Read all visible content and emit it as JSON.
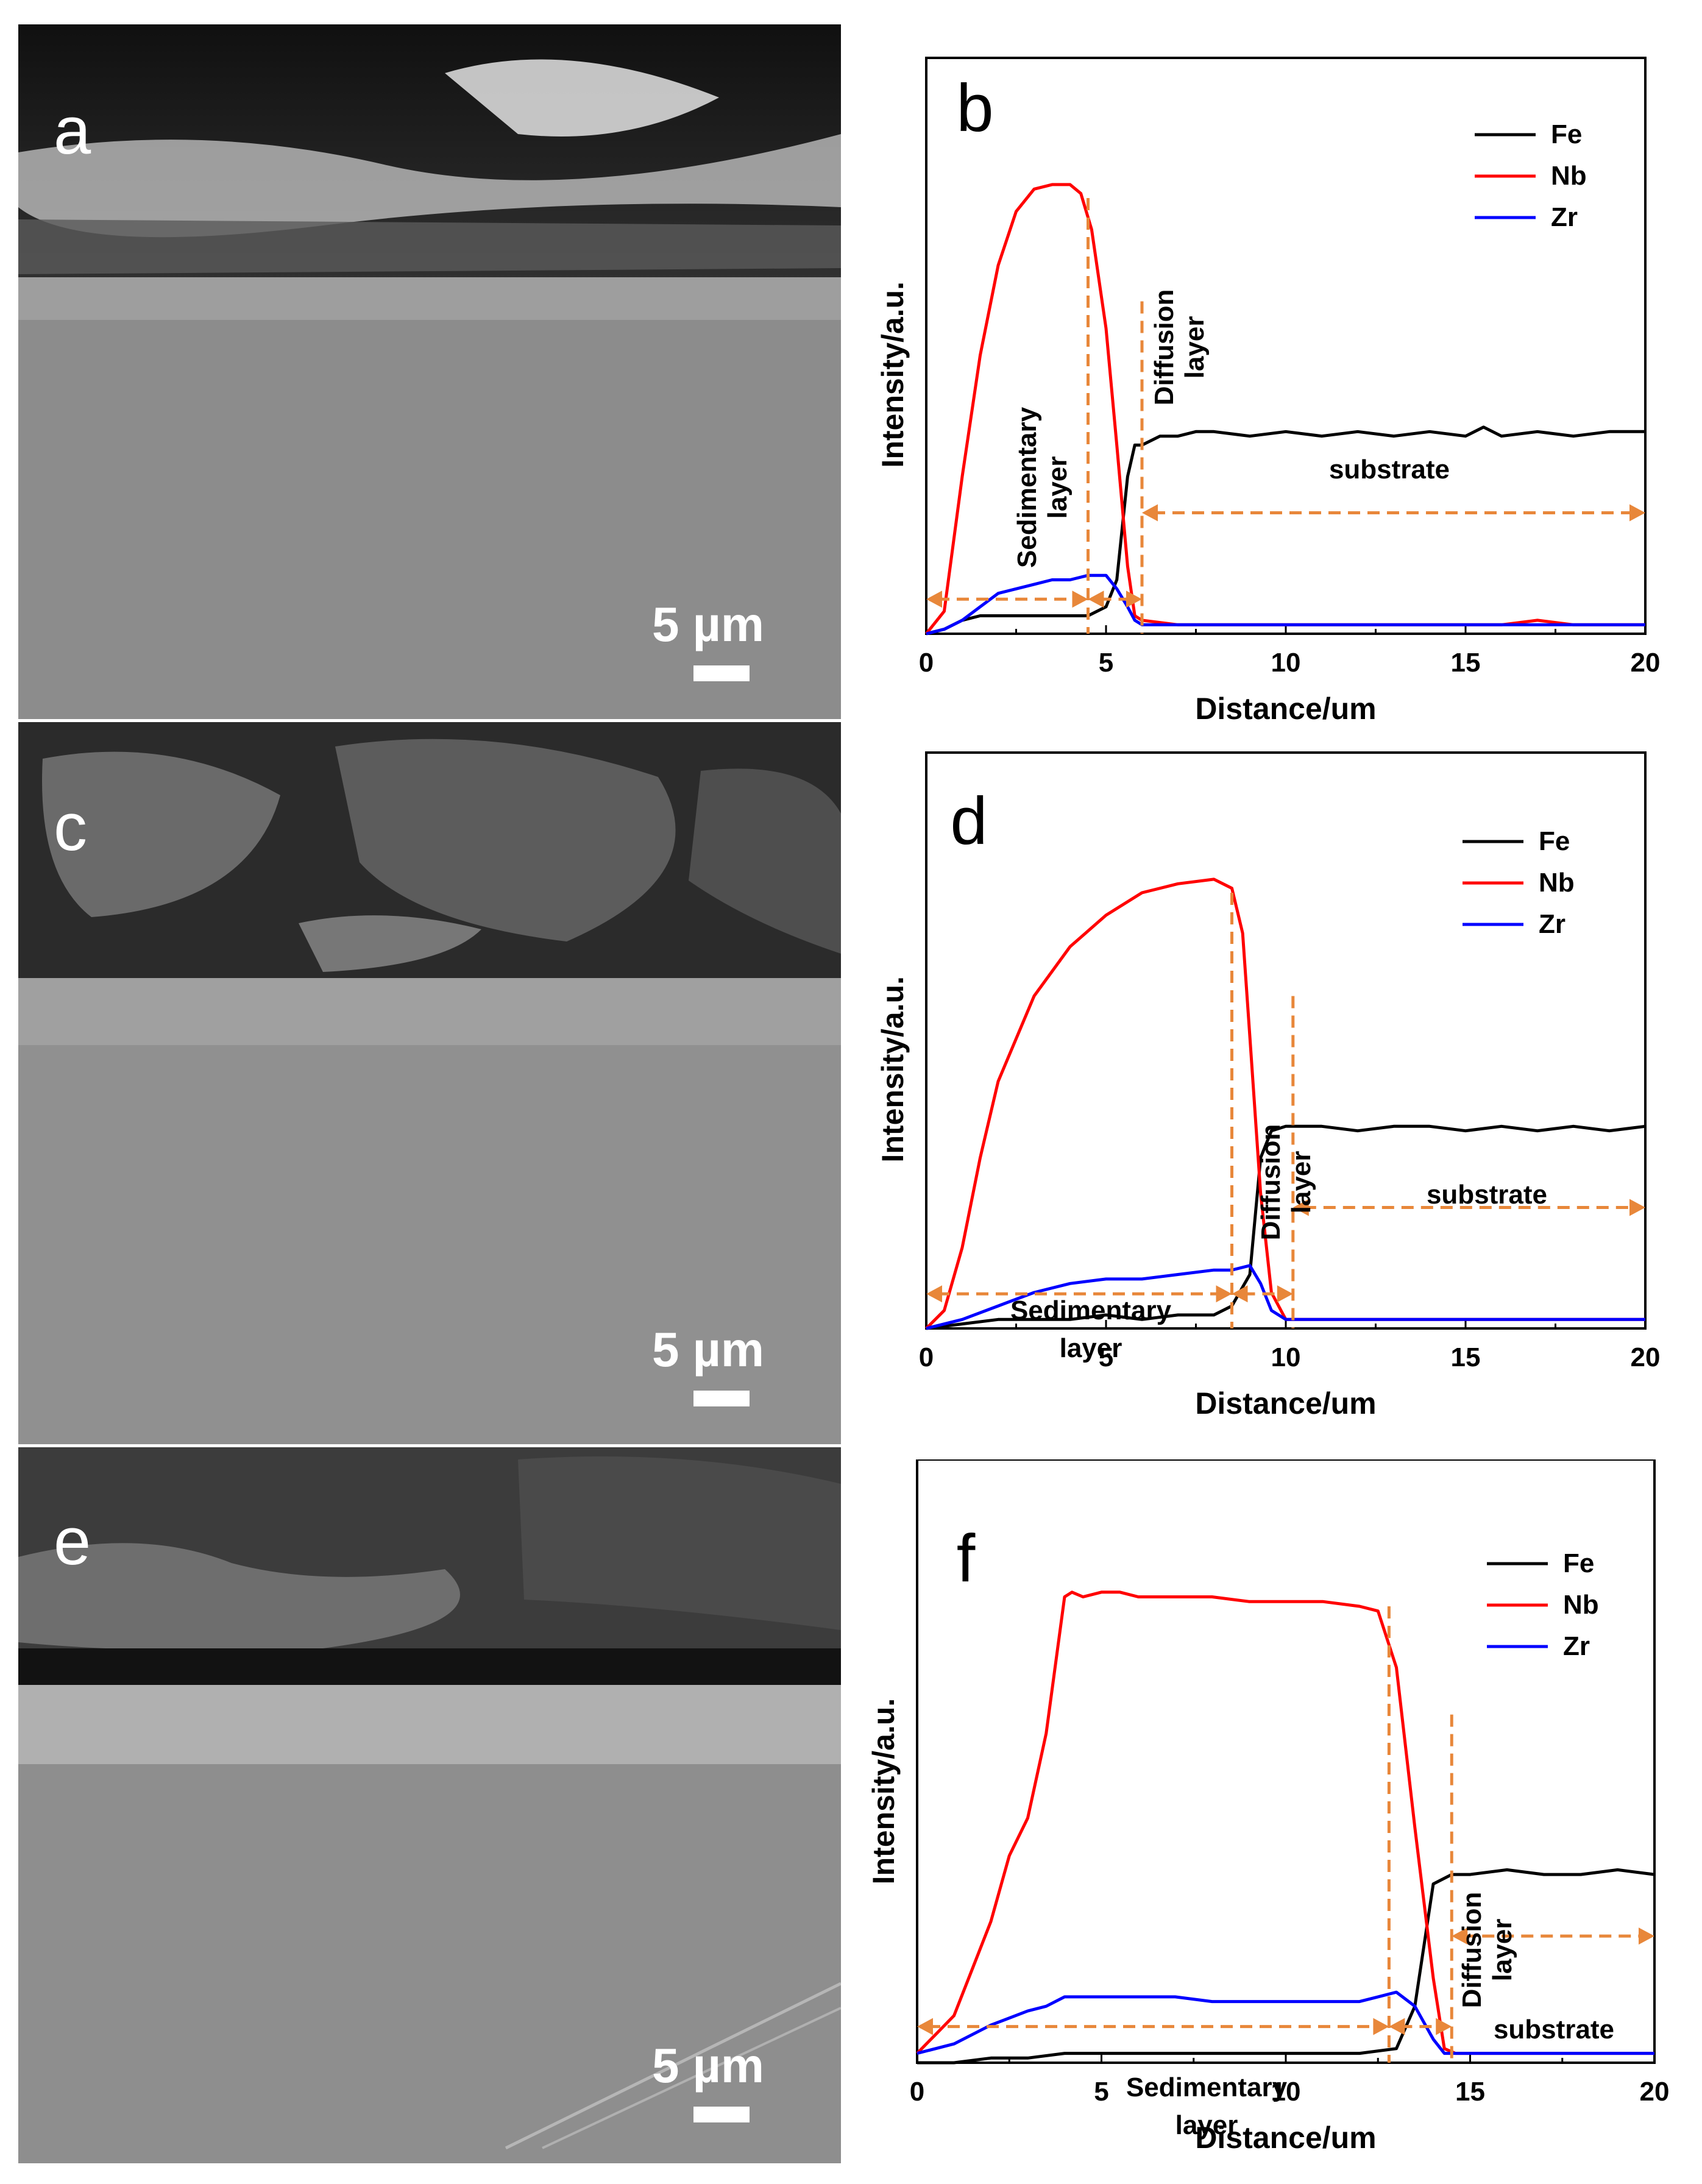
{
  "figure": {
    "sem_panels": [
      {
        "letter": "a",
        "scale_label": "5 µm"
      },
      {
        "letter": "c",
        "scale_label": "5 µm"
      },
      {
        "letter": "e",
        "scale_label": "5 µm"
      }
    ]
  },
  "chart_data": [
    {
      "type": "line",
      "panel_letter": "b",
      "xlabel": "Distance/um",
      "ylabel": "Intensity/a.u.",
      "xlim": [
        0,
        20
      ],
      "ylim": [
        0,
        1
      ],
      "xticks": [
        0,
        5,
        10,
        15,
        20
      ],
      "legend": "top-right",
      "series": [
        {
          "name": "Fe",
          "color": "#000000",
          "x": [
            0,
            0.5,
            1,
            1.5,
            2,
            2.5,
            3,
            3.5,
            4,
            4.5,
            5,
            5.3,
            5.6,
            5.8,
            6,
            6.5,
            7,
            7.5,
            8,
            9,
            10,
            11,
            12,
            13,
            14,
            15,
            15.5,
            16,
            17,
            18,
            19,
            20
          ],
          "y": [
            0.0,
            0.01,
            0.03,
            0.04,
            0.04,
            0.04,
            0.04,
            0.04,
            0.04,
            0.04,
            0.06,
            0.12,
            0.35,
            0.42,
            0.42,
            0.44,
            0.44,
            0.45,
            0.45,
            0.44,
            0.45,
            0.44,
            0.45,
            0.44,
            0.45,
            0.44,
            0.46,
            0.44,
            0.45,
            0.44,
            0.45,
            0.45
          ]
        },
        {
          "name": "Nb",
          "color": "#ff0000",
          "x": [
            0,
            0.5,
            1,
            1.5,
            2,
            2.5,
            3,
            3.5,
            4,
            4.3,
            4.6,
            5,
            5.3,
            5.6,
            5.8,
            6,
            7,
            8,
            10,
            12,
            14,
            16,
            17,
            18,
            20
          ],
          "y": [
            0.0,
            0.05,
            0.35,
            0.62,
            0.82,
            0.94,
            0.99,
            1.0,
            1.0,
            0.98,
            0.9,
            0.68,
            0.42,
            0.15,
            0.04,
            0.03,
            0.02,
            0.02,
            0.02,
            0.02,
            0.02,
            0.02,
            0.03,
            0.02,
            0.02
          ]
        },
        {
          "name": "Zr",
          "color": "#0000ff",
          "x": [
            0,
            0.5,
            1,
            1.5,
            2,
            2.5,
            3,
            3.5,
            4,
            4.5,
            5,
            5.3,
            5.6,
            5.8,
            6,
            7,
            8,
            10,
            12,
            14,
            16,
            18,
            20
          ],
          "y": [
            0.0,
            0.01,
            0.03,
            0.06,
            0.09,
            0.1,
            0.11,
            0.12,
            0.12,
            0.13,
            0.13,
            0.1,
            0.06,
            0.03,
            0.02,
            0.02,
            0.02,
            0.02,
            0.02,
            0.02,
            0.02,
            0.02,
            0.02
          ]
        }
      ],
      "dashed_lines_x": [
        4.5,
        6.0
      ],
      "annotations": [
        {
          "text": "Sedimentary",
          "text2": "layer",
          "kind": "vertical"
        },
        {
          "text": "Diffusion",
          "text2": "layer",
          "kind": "vertical"
        },
        {
          "text": "substrate",
          "kind": "horizontal"
        }
      ]
    },
    {
      "type": "line",
      "panel_letter": "d",
      "xlabel": "Distance/um",
      "ylabel": "Intensity/a.u.",
      "xlim": [
        0,
        20
      ],
      "ylim": [
        0,
        1
      ],
      "xticks": [
        0,
        5,
        10,
        15,
        20
      ],
      "legend": "top-right",
      "series": [
        {
          "name": "Fe",
          "color": "#000000",
          "x": [
            0,
            1,
            2,
            3,
            4,
            5,
            6,
            7,
            8,
            8.5,
            9,
            9.3,
            9.6,
            10,
            10.5,
            11,
            12,
            13,
            14,
            15,
            16,
            17,
            18,
            19,
            20
          ],
          "y": [
            0.0,
            0.01,
            0.02,
            0.02,
            0.02,
            0.03,
            0.02,
            0.03,
            0.03,
            0.05,
            0.12,
            0.38,
            0.44,
            0.45,
            0.45,
            0.45,
            0.44,
            0.45,
            0.45,
            0.44,
            0.45,
            0.44,
            0.45,
            0.44,
            0.45
          ]
        },
        {
          "name": "Nb",
          "color": "#ff0000",
          "x": [
            0,
            0.5,
            1,
            1.5,
            2,
            3,
            4,
            5,
            6,
            7,
            8,
            8.5,
            8.8,
            9,
            9.3,
            9.6,
            10,
            11,
            12,
            14,
            16,
            18,
            20
          ],
          "y": [
            0.0,
            0.04,
            0.18,
            0.38,
            0.55,
            0.74,
            0.85,
            0.92,
            0.97,
            0.99,
            1.0,
            0.98,
            0.88,
            0.65,
            0.3,
            0.08,
            0.02,
            0.02,
            0.02,
            0.02,
            0.02,
            0.02,
            0.02
          ]
        },
        {
          "name": "Zr",
          "color": "#0000ff",
          "x": [
            0,
            1,
            2,
            3,
            4,
            5,
            6,
            7,
            8,
            8.5,
            9,
            9.3,
            9.6,
            10,
            12,
            14,
            16,
            18,
            20
          ],
          "y": [
            0.0,
            0.02,
            0.05,
            0.08,
            0.1,
            0.11,
            0.11,
            0.12,
            0.13,
            0.13,
            0.14,
            0.1,
            0.04,
            0.02,
            0.02,
            0.02,
            0.02,
            0.02,
            0.02
          ]
        }
      ],
      "dashed_lines_x": [
        8.5,
        10.2
      ],
      "annotations": [
        {
          "text": "Sedimentary",
          "text2": "layer",
          "kind": "horizontal"
        },
        {
          "text": "Diffusion",
          "text2": "layer",
          "kind": "vertical"
        },
        {
          "text": "substrate",
          "kind": "horizontal"
        }
      ]
    },
    {
      "type": "line",
      "panel_letter": "f",
      "xlabel": "Distance/um",
      "ylabel": "Intensity/a.u.",
      "xlim": [
        0,
        20
      ],
      "ylim": [
        0,
        1
      ],
      "xticks": [
        0,
        5,
        10,
        15,
        20
      ],
      "legend": "top-right",
      "series": [
        {
          "name": "Fe",
          "color": "#000000",
          "x": [
            0,
            1,
            2,
            3,
            4,
            5,
            6,
            7,
            8,
            9,
            10,
            11,
            12,
            13,
            13.5,
            14,
            14.5,
            15,
            16,
            17,
            18,
            19,
            20
          ],
          "y": [
            0.0,
            0.0,
            0.01,
            0.01,
            0.02,
            0.02,
            0.02,
            0.02,
            0.02,
            0.02,
            0.02,
            0.02,
            0.02,
            0.03,
            0.12,
            0.38,
            0.4,
            0.4,
            0.41,
            0.4,
            0.4,
            0.41,
            0.4
          ]
        },
        {
          "name": "Nb",
          "color": "#ff0000",
          "x": [
            0,
            0.5,
            1,
            1.5,
            2,
            2.5,
            3,
            3.5,
            4,
            4.2,
            4.5,
            5,
            5.5,
            6,
            7,
            8,
            9,
            10,
            11,
            12,
            12.5,
            13,
            13.5,
            14,
            14.3,
            14.6,
            15,
            16,
            18,
            20
          ],
          "y": [
            0.02,
            0.06,
            0.1,
            0.2,
            0.3,
            0.44,
            0.52,
            0.7,
            0.99,
            1.0,
            0.99,
            1.0,
            1.0,
            0.99,
            0.99,
            0.99,
            0.98,
            0.98,
            0.98,
            0.97,
            0.96,
            0.84,
            0.5,
            0.18,
            0.03,
            0.02,
            0.02,
            0.02,
            0.02,
            0.02
          ]
        },
        {
          "name": "Zr",
          "color": "#0000ff",
          "x": [
            0,
            1,
            2,
            3,
            3.5,
            4,
            5,
            6,
            7,
            8,
            9,
            10,
            11,
            12,
            12.5,
            13,
            13.5,
            14,
            14.3,
            14.6,
            15,
            16,
            18,
            20
          ],
          "y": [
            0.02,
            0.04,
            0.08,
            0.11,
            0.12,
            0.14,
            0.14,
            0.14,
            0.14,
            0.13,
            0.13,
            0.13,
            0.13,
            0.13,
            0.14,
            0.15,
            0.12,
            0.05,
            0.02,
            0.02,
            0.02,
            0.02,
            0.02,
            0.02
          ]
        }
      ],
      "dashed_lines_x": [
        12.8,
        14.5
      ],
      "annotations": [
        {
          "text": "Sedimentary",
          "text2": "layer",
          "kind": "horizontal"
        },
        {
          "text": "Diffusion",
          "text2": "layer",
          "kind": "vertical"
        },
        {
          "text": "substrate",
          "kind": "horizontal"
        }
      ]
    }
  ]
}
